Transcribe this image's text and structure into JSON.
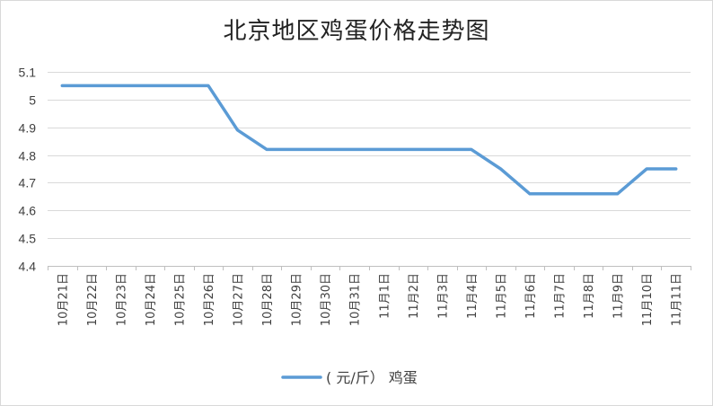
{
  "chart_data": {
    "type": "line",
    "title": "北京地区鸡蛋价格走势图",
    "categories": [
      "10月21日",
      "10月22日",
      "10月23日",
      "10月24日",
      "10月25日",
      "10月26日",
      "10月27日",
      "10月28日",
      "10月29日",
      "10月30日",
      "10月31日",
      "11月1日",
      "11月2日",
      "11月3日",
      "11月4日",
      "11月5日",
      "11月6日",
      "11月7日",
      "11月8日",
      "11月9日",
      "11月10日",
      "11月11日"
    ],
    "series": [
      {
        "name": "( 元/斤） 鸡蛋",
        "color": "#5b9bd5",
        "values": [
          5.05,
          5.05,
          5.05,
          5.05,
          5.05,
          5.05,
          4.89,
          4.82,
          4.82,
          4.82,
          4.82,
          4.82,
          4.82,
          4.82,
          4.82,
          4.75,
          4.66,
          4.66,
          4.66,
          4.66,
          4.75,
          4.75
        ]
      }
    ],
    "ylim": [
      4.4,
      5.1
    ],
    "yticks": [
      4.4,
      4.5,
      4.6,
      4.7,
      4.8,
      4.9,
      5,
      5.1
    ],
    "grid": true,
    "legend": "bottom"
  }
}
